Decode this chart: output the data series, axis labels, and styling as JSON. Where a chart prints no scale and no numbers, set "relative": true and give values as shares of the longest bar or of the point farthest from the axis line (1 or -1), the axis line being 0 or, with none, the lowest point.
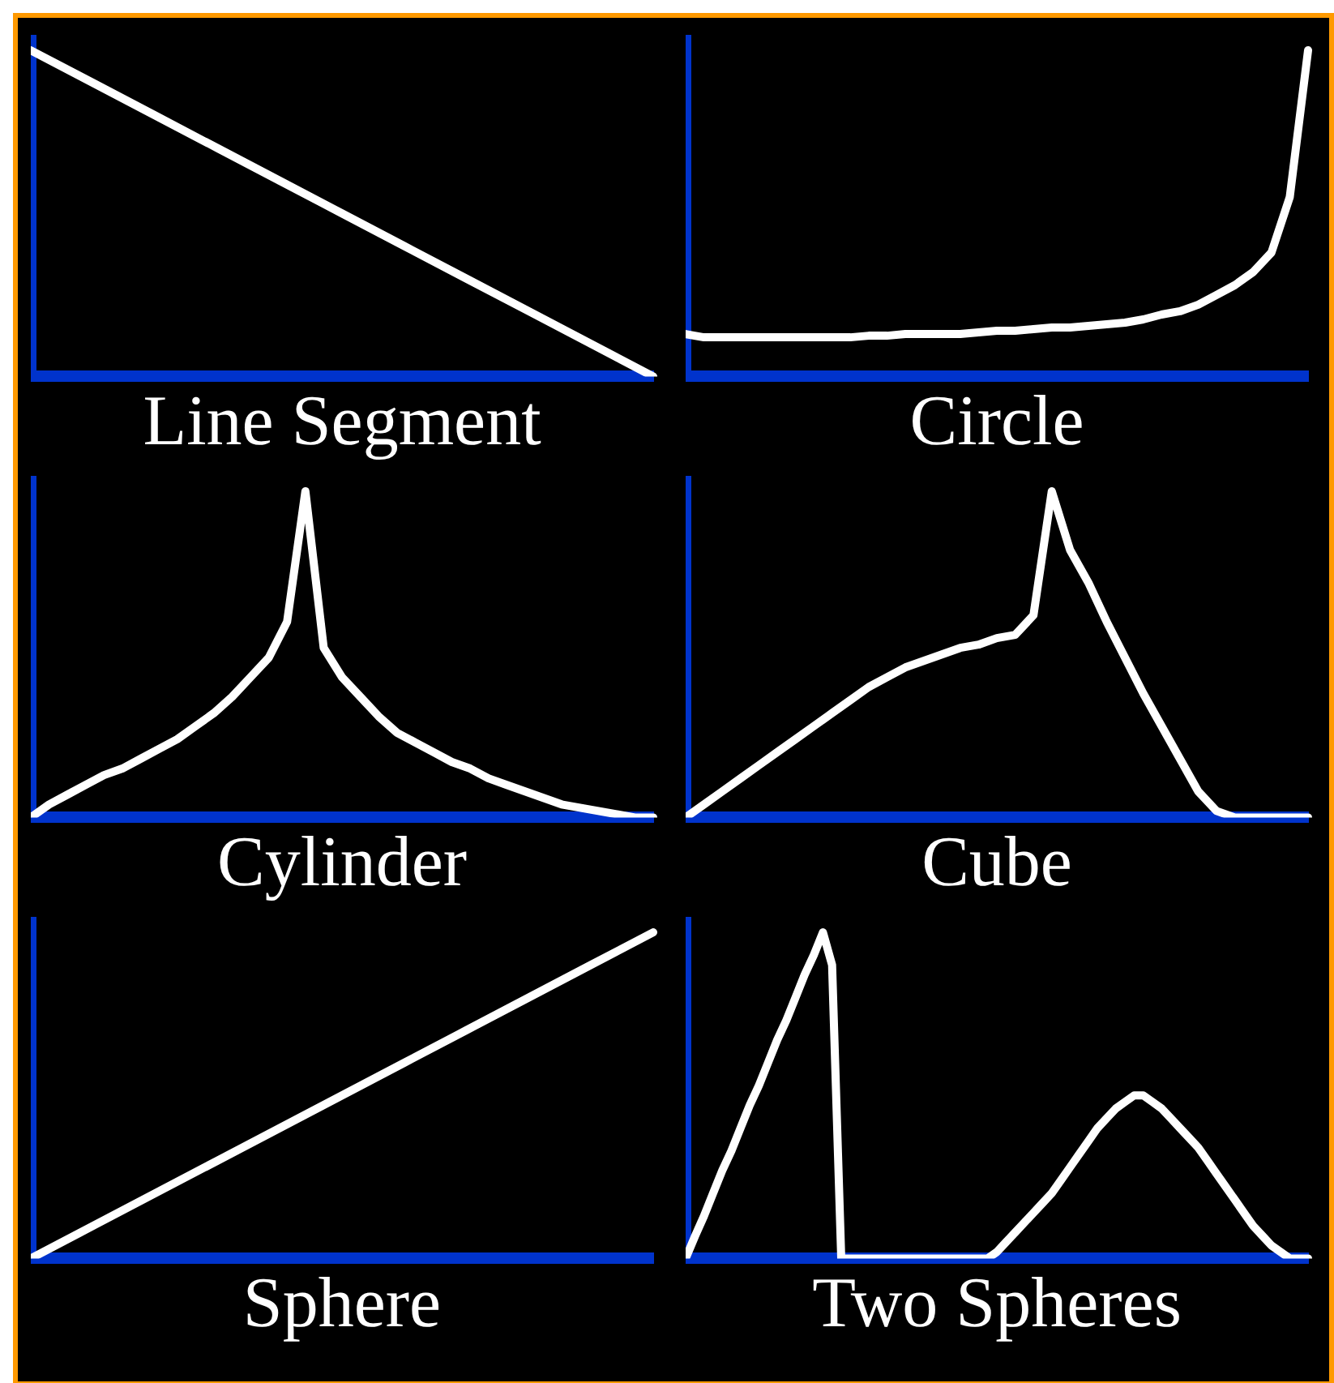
{
  "chart_data": [
    {
      "type": "line",
      "xlabel": "Line Segment",
      "relative": true,
      "marker": "none",
      "categories": [
        null,
        null,
        null,
        null,
        null,
        null,
        null,
        null,
        null,
        null,
        null
      ],
      "series": [
        {
          "color": "#ffffff",
          "values": [
            1,
            0.9,
            0.8,
            0.7,
            0.6,
            0.5,
            0.4,
            0.3,
            0.2,
            0.1,
            0
          ]
        }
      ]
    },
    {
      "type": "line",
      "xlabel": "Circle",
      "relative": true,
      "marker": "none",
      "categories": [
        null,
        null,
        null,
        null,
        null,
        null,
        null,
        null,
        null,
        null,
        null,
        null,
        null,
        null,
        null,
        null,
        null,
        null,
        null,
        null,
        null,
        null,
        null,
        null,
        null,
        null,
        null,
        null,
        null,
        null,
        null,
        null,
        null,
        null,
        null
      ],
      "series": [
        {
          "color": "#ffffff",
          "values": [
            0.13,
            0.12,
            0.12,
            0.12,
            0.12,
            0.12,
            0.12,
            0.12,
            0.12,
            0.12,
            0.125,
            0.125,
            0.13,
            0.13,
            0.13,
            0.13,
            0.135,
            0.14,
            0.14,
            0.145,
            0.15,
            0.15,
            0.155,
            0.16,
            0.165,
            0.175,
            0.19,
            0.2,
            0.22,
            0.25,
            0.28,
            0.32,
            0.38,
            0.55,
            1.0
          ]
        }
      ]
    },
    {
      "type": "line",
      "xlabel": "Cylinder",
      "relative": true,
      "marker": "none",
      "categories": [
        null,
        null,
        null,
        null,
        null,
        null,
        null,
        null,
        null,
        null,
        null,
        null,
        null,
        null,
        null,
        null,
        null,
        null,
        null,
        null,
        null,
        null,
        null,
        null,
        null,
        null,
        null,
        null,
        null,
        null,
        null,
        null,
        null,
        null,
        null
      ],
      "series": [
        {
          "color": "#ffffff",
          "values": [
            0,
            0.04,
            0.07,
            0.1,
            0.13,
            0.15,
            0.18,
            0.21,
            0.24,
            0.28,
            0.32,
            0.37,
            0.43,
            0.49,
            0.6,
            1.0,
            0.52,
            0.43,
            0.37,
            0.31,
            0.26,
            0.23,
            0.2,
            0.17,
            0.15,
            0.12,
            0.1,
            0.08,
            0.06,
            0.04,
            0.03,
            0.02,
            0.01,
            0,
            0
          ]
        }
      ]
    },
    {
      "type": "line",
      "xlabel": "Cube",
      "relative": true,
      "marker": "none",
      "categories": [
        null,
        null,
        null,
        null,
        null,
        null,
        null,
        null,
        null,
        null,
        null,
        null,
        null,
        null,
        null,
        null,
        null,
        null,
        null,
        null,
        null,
        null,
        null,
        null,
        null,
        null,
        null,
        null,
        null,
        null,
        null,
        null,
        null,
        null,
        null
      ],
      "series": [
        {
          "color": "#ffffff",
          "values": [
            0,
            0.04,
            0.08,
            0.12,
            0.16,
            0.2,
            0.24,
            0.28,
            0.32,
            0.36,
            0.4,
            0.43,
            0.46,
            0.48,
            0.5,
            0.52,
            0.53,
            0.55,
            0.56,
            0.62,
            1.0,
            0.82,
            0.72,
            0.6,
            0.49,
            0.38,
            0.28,
            0.18,
            0.08,
            0.02,
            0,
            0,
            0,
            0,
            0
          ]
        }
      ]
    },
    {
      "type": "line",
      "xlabel": "Sphere",
      "relative": true,
      "marker": "none",
      "categories": [
        null,
        null,
        null,
        null,
        null,
        null,
        null,
        null,
        null,
        null,
        null
      ],
      "series": [
        {
          "color": "#ffffff",
          "values": [
            0,
            0.1,
            0.2,
            0.3,
            0.4,
            0.5,
            0.6,
            0.7,
            0.8,
            0.9,
            1
          ]
        }
      ]
    },
    {
      "type": "line",
      "xlabel": "Two Spheres",
      "relative": true,
      "marker": "none",
      "categories": [
        null,
        null,
        null,
        null,
        null,
        null,
        null,
        null,
        null,
        null,
        null,
        null,
        null,
        null,
        null,
        null,
        null,
        null,
        null,
        null,
        null,
        null,
        null,
        null,
        null,
        null,
        null,
        null,
        null,
        null,
        null,
        null,
        null,
        null,
        null,
        null,
        null,
        null,
        null,
        null,
        null,
        null,
        null,
        null,
        null,
        null,
        null,
        null,
        null,
        null,
        null,
        null,
        null,
        null,
        null,
        null,
        null,
        null,
        null,
        null,
        null,
        null,
        null,
        null,
        null,
        null,
        null,
        null,
        null
      ],
      "series": [
        {
          "color": "#ffffff",
          "values": [
            0,
            0.067,
            0.13,
            0.2,
            0.27,
            0.33,
            0.4,
            0.47,
            0.53,
            0.6,
            0.67,
            0.73,
            0.8,
            0.87,
            0.93,
            1.0,
            0.9,
            0,
            0,
            0,
            0,
            0,
            0,
            0,
            0,
            0,
            0,
            0,
            0,
            0,
            0,
            0,
            0,
            0,
            0.02,
            0.05,
            0.08,
            0.11,
            0.14,
            0.17,
            0.2,
            0.24,
            0.28,
            0.32,
            0.36,
            0.4,
            0.43,
            0.46,
            0.48,
            0.5,
            0.5,
            0.48,
            0.46,
            0.43,
            0.4,
            0.37,
            0.34,
            0.3,
            0.26,
            0.22,
            0.18,
            0.14,
            0.1,
            0.07,
            0.04,
            0.02,
            0,
            0,
            0
          ]
        }
      ]
    }
  ]
}
